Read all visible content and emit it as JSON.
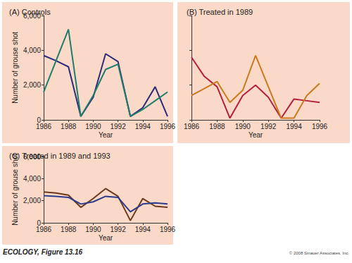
{
  "chart_data": [
    {
      "type": "line",
      "title": "(A) Controls",
      "x_label": "Year",
      "y_label": "Number of grouse shot",
      "x": [
        1986,
        1987,
        1988,
        1989,
        1990,
        1991,
        1992,
        1993,
        1994,
        1995,
        1996
      ],
      "series": [
        {
          "color": "#2b2b7c",
          "values": [
            3700,
            3400,
            3050,
            200,
            1300,
            3800,
            3350,
            200,
            700,
            1900,
            200
          ]
        },
        {
          "color": "#1f7d6b",
          "values": [
            1600,
            3400,
            5200,
            200,
            1400,
            2900,
            3200,
            200,
            600,
            1100,
            1600
          ]
        }
      ],
      "xlim": [
        1986,
        1996
      ],
      "xticks": [
        1986,
        1988,
        1990,
        1992,
        1994,
        1996
      ],
      "ylim": [
        0,
        6000
      ],
      "yticks": [
        0,
        {
          "value": 2000,
          "label": "2,000"
        },
        {
          "value": 4000,
          "label": "4,000"
        },
        {
          "value": 6000,
          "label": "6,000"
        }
      ],
      "grid": false
    },
    {
      "type": "line",
      "title": "(B) Treated in 1989",
      "x_label": "Year",
      "x": [
        1986,
        1987,
        1988,
        1989,
        1990,
        1991,
        1992,
        1993,
        1994,
        1995,
        1996
      ],
      "series": [
        {
          "color": "#b3203c",
          "values": [
            3600,
            2500,
            1900,
            100,
            1400,
            2000,
            1300,
            100,
            1200,
            1100,
            1000
          ]
        },
        {
          "color": "#c97a1f",
          "values": [
            1400,
            1800,
            2200,
            1000,
            1700,
            3700,
            1900,
            100,
            100,
            1400,
            2100
          ]
        }
      ],
      "xlim": [
        1986,
        1996
      ],
      "xticks": [
        1986,
        1988,
        1990,
        1992,
        1994,
        1996
      ],
      "ylim": [
        0,
        6000
      ],
      "yticks": [
        0,
        2000,
        4000,
        6000
      ],
      "tick_labels": "x",
      "grid": false
    },
    {
      "type": "line",
      "title": "(C) Treated in 1989 and 1993",
      "x_label": "Year",
      "y_label": "Number of grouse shot",
      "x": [
        1986,
        1987,
        1988,
        1989,
        1990,
        1991,
        1992,
        1993,
        1994,
        1995,
        1996
      ],
      "series": [
        {
          "color": "#6b3a1c",
          "values": [
            2800,
            2700,
            2500,
            1400,
            2200,
            3100,
            2400,
            200,
            2200,
            1500,
            1400
          ]
        },
        {
          "color": "#2c3c8c",
          "values": [
            2450,
            2400,
            2300,
            1700,
            1900,
            2400,
            2300,
            1000,
            1700,
            1800,
            1700
          ]
        }
      ],
      "xlim": [
        1986,
        1996
      ],
      "xticks": [
        1986,
        1988,
        1990,
        1992,
        1994,
        1996
      ],
      "ylim": [
        0,
        6000
      ],
      "yticks": [
        0,
        {
          "value": 2000,
          "label": "2,000"
        },
        {
          "value": 4000,
          "label": "4,000"
        },
        {
          "value": 6000,
          "label": "6,000"
        }
      ],
      "grid": false
    }
  ],
  "footer": {
    "left": "ECOLOGY, Figure 13.16",
    "right": "© 2008 Sinauer Associates, Inc."
  }
}
